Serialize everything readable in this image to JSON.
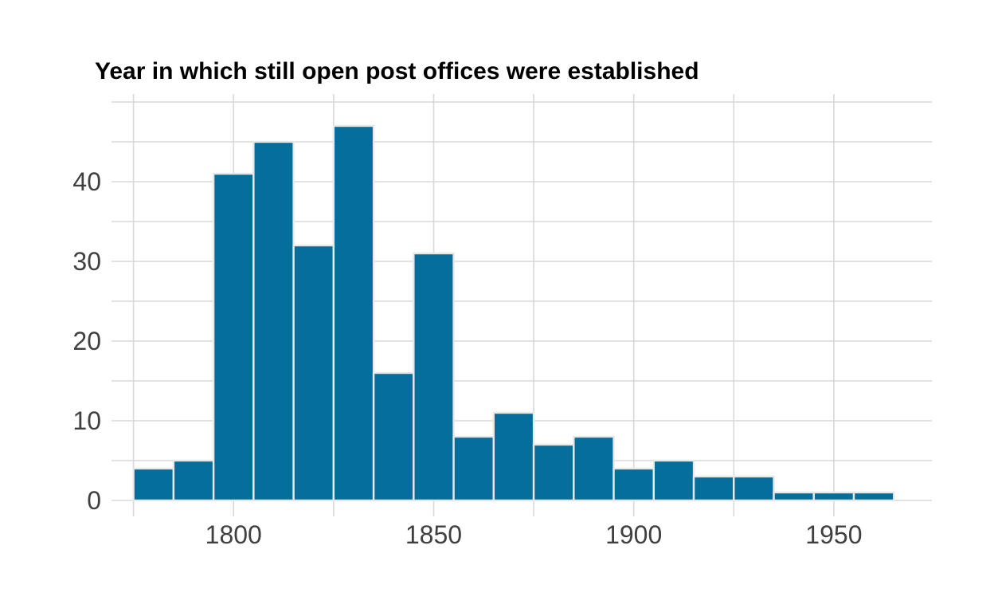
{
  "chart_data": {
    "type": "bar",
    "subtype": "histogram",
    "title": "Year in which still open post offices were established",
    "xlabel": "",
    "ylabel": "",
    "bin_width": 10,
    "bin_edges": [
      1775,
      1785,
      1795,
      1805,
      1815,
      1825,
      1835,
      1845,
      1855,
      1865,
      1875,
      1885,
      1895,
      1905,
      1915,
      1925,
      1935,
      1945,
      1955,
      1965
    ],
    "counts": [
      4,
      5,
      41,
      45,
      32,
      47,
      16,
      31,
      8,
      11,
      7,
      8,
      4,
      5,
      3,
      3,
      1,
      1,
      1
    ],
    "xlim": [
      1769.5,
      1974.5
    ],
    "ylim": [
      -2,
      51
    ],
    "x_ticks": [
      {
        "value": 1800,
        "label": "1800"
      },
      {
        "value": 1850,
        "label": "1850"
      },
      {
        "value": 1900,
        "label": "1900"
      },
      {
        "value": 1950,
        "label": "1950"
      }
    ],
    "y_ticks": [
      {
        "value": 0,
        "label": "0"
      },
      {
        "value": 10,
        "label": "10"
      },
      {
        "value": 20,
        "label": "20"
      },
      {
        "value": 30,
        "label": "30"
      },
      {
        "value": 40,
        "label": "40"
      }
    ],
    "x_gridlines": [
      1775,
      1800,
      1825,
      1850,
      1875,
      1900,
      1925,
      1950
    ],
    "y_gridlines": [
      0,
      5,
      10,
      15,
      20,
      25,
      30,
      35,
      40,
      45,
      50
    ],
    "grid_on": true,
    "legend": null,
    "colors": {
      "bar_fill": "#066e9a",
      "bar_border": "#e8e8e8",
      "gridline": "#d8d8d8",
      "tick_label": "#404040",
      "title": "#000000",
      "background": "#ffffff"
    }
  }
}
